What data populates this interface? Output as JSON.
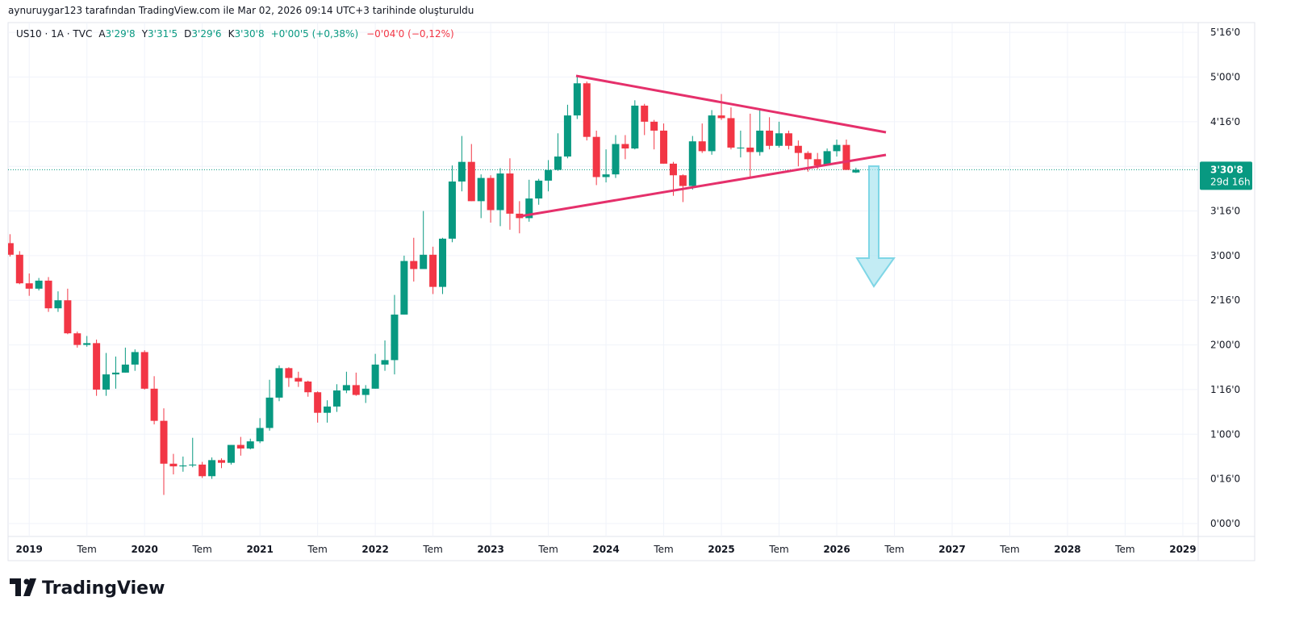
{
  "page": {
    "credit": "aynuruygar123 tarafından TradingView.com ile Mar 02, 2026 09:14 UTC+3 tarihinde oluşturuldu",
    "brand": "TradingView"
  },
  "chart_data": {
    "type": "candlestick",
    "header": {
      "symbol": "US10 · 1A · TVC",
      "fields": [
        {
          "label": "A",
          "value": "3'29'8"
        },
        {
          "label": "Y",
          "value": "3'31'5"
        },
        {
          "label": "D",
          "value": "3'29'6"
        },
        {
          "label": "K",
          "value": "3'30'8"
        }
      ],
      "change": "+0'00'5 (+0,38%)",
      "change2": "−0'04'0 (−0,12%)"
    },
    "open": [
      3.14,
      3.01,
      2.69,
      2.63,
      2.72,
      2.41,
      2.5,
      2.13,
      2.0,
      2.02,
      1.5,
      1.67,
      1.69,
      1.78,
      1.92,
      1.51,
      1.15,
      0.67,
      0.64,
      0.65,
      0.66,
      0.53,
      0.71,
      0.68,
      0.88,
      0.84,
      0.92,
      1.07,
      1.41,
      1.74,
      1.63,
      1.59,
      1.47,
      1.24,
      1.31,
      1.49,
      1.55,
      1.44,
      1.51,
      1.78,
      1.83,
      2.34,
      2.94,
      2.85,
      3.01,
      2.65,
      3.19,
      3.83,
      4.05,
      3.61,
      3.87,
      3.51,
      3.92,
      3.47,
      3.42,
      3.64,
      3.84,
      3.96,
      4.11,
      4.57,
      4.93,
      4.33,
      3.88,
      3.91,
      4.25,
      4.2,
      4.68,
      4.5,
      4.4,
      4.03,
      3.9,
      3.78,
      4.28,
      4.17,
      4.57,
      4.54,
      4.21,
      4.21,
      4.16,
      4.4,
      4.23,
      4.37,
      4.23,
      4.15,
      4.08,
      4.01,
      4.17,
      4.24,
      3.93125
    ],
    "high": [
      3.24,
      3.05,
      2.8,
      2.75,
      2.76,
      2.6,
      2.63,
      2.15,
      2.1,
      2.06,
      1.91,
      1.87,
      1.97,
      1.95,
      1.94,
      1.65,
      1.29,
      0.78,
      0.75,
      0.96,
      0.69,
      0.74,
      0.73,
      0.88,
      0.97,
      0.95,
      1.18,
      1.61,
      1.77,
      1.75,
      1.7,
      1.6,
      1.48,
      1.38,
      1.56,
      1.7,
      1.69,
      1.55,
      1.9,
      2.05,
      2.56,
      3.0,
      3.2,
      3.5,
      3.1,
      3.2,
      4.01,
      4.34,
      4.25,
      3.91,
      3.9,
      3.98,
      4.09,
      3.61,
      3.85,
      3.86,
      4.07,
      4.37,
      4.69,
      5.02,
      4.95,
      4.4,
      4.19,
      4.35,
      4.35,
      4.74,
      4.7,
      4.52,
      4.48,
      4.05,
      3.91,
      4.34,
      4.48,
      4.63,
      4.81,
      4.66,
      4.4,
      4.59,
      4.63,
      4.55,
      4.5,
      4.4,
      4.29,
      4.17,
      4.15,
      4.2,
      4.3,
      4.3,
      3.984375
    ],
    "low": [
      2.99,
      2.68,
      2.55,
      2.61,
      2.37,
      2.37,
      2.12,
      1.97,
      1.98,
      1.43,
      1.43,
      1.51,
      1.69,
      1.71,
      1.5,
      1.11,
      0.32,
      0.55,
      0.58,
      0.63,
      0.51,
      0.5,
      0.62,
      0.66,
      0.76,
      0.83,
      0.9,
      1.04,
      1.37,
      1.53,
      1.53,
      1.42,
      1.13,
      1.13,
      1.25,
      1.46,
      1.43,
      1.35,
      1.51,
      1.71,
      1.67,
      2.34,
      2.71,
      2.85,
      2.57,
      2.57,
      3.15,
      3.72,
      3.61,
      3.42,
      3.37,
      3.33,
      3.29,
      3.25,
      3.38,
      3.57,
      3.72,
      3.95,
      4.09,
      4.53,
      4.29,
      3.79,
      3.82,
      3.87,
      4.08,
      4.19,
      4.35,
      4.19,
      4.03,
      3.67,
      3.6,
      3.74,
      4.15,
      4.13,
      4.52,
      4.19,
      4.1,
      3.87,
      4.12,
      4.19,
      4.21,
      4.19,
      4.0,
      3.94,
      3.97,
      4.01,
      4.11,
      3.96,
      3.925
    ],
    "close": [
      3.01,
      2.69,
      2.63,
      2.72,
      2.41,
      2.5,
      2.13,
      2.0,
      2.02,
      1.5,
      1.67,
      1.69,
      1.78,
      1.92,
      1.51,
      1.15,
      0.67,
      0.64,
      0.65,
      0.66,
      0.53,
      0.71,
      0.68,
      0.88,
      0.84,
      0.92,
      1.07,
      1.41,
      1.74,
      1.63,
      1.59,
      1.47,
      1.24,
      1.31,
      1.49,
      1.55,
      1.44,
      1.51,
      1.78,
      1.83,
      2.34,
      2.94,
      2.85,
      3.01,
      2.65,
      3.19,
      3.83,
      4.05,
      3.61,
      3.87,
      3.51,
      3.92,
      3.47,
      3.42,
      3.64,
      3.84,
      3.96,
      4.11,
      4.57,
      4.93,
      4.33,
      3.88,
      3.91,
      4.25,
      4.2,
      4.68,
      4.5,
      4.4,
      4.03,
      3.9,
      3.78,
      4.28,
      4.17,
      4.57,
      4.54,
      4.21,
      4.21,
      4.16,
      4.4,
      4.23,
      4.37,
      4.23,
      4.15,
      4.08,
      4.01,
      4.17,
      4.24,
      3.96,
      3.9625
    ],
    "up_color": "#089981",
    "down_color": "#f23645",
    "last_price": {
      "value": 3.9625,
      "label": "3'30'8"
    },
    "countdown": "29d 16h",
    "xlim": [
      -0.2,
      123.6
    ],
    "xticks": [
      {
        "value": 2,
        "label": "2019"
      },
      {
        "value": 8,
        "label": "Tem"
      },
      {
        "value": 14,
        "label": "2020"
      },
      {
        "value": 20,
        "label": "Tem"
      },
      {
        "value": 26,
        "label": "2021"
      },
      {
        "value": 32,
        "label": "Tem"
      },
      {
        "value": 38,
        "label": "2022"
      },
      {
        "value": 44,
        "label": "Tem"
      },
      {
        "value": 50,
        "label": "2023"
      },
      {
        "value": 56,
        "label": "Tem"
      },
      {
        "value": 62,
        "label": "2024"
      },
      {
        "value": 68,
        "label": "Tem"
      },
      {
        "value": 74,
        "label": "2025"
      },
      {
        "value": 80,
        "label": "Tem"
      },
      {
        "value": 86,
        "label": "2026"
      },
      {
        "value": 92,
        "label": "Tem"
      },
      {
        "value": 98,
        "label": "2027"
      },
      {
        "value": 104,
        "label": "Tem"
      },
      {
        "value": 110,
        "label": "2028"
      },
      {
        "value": 116,
        "label": "Tem"
      },
      {
        "value": 122,
        "label": "2029"
      }
    ],
    "ylim": [
      -0.145,
      5.61
    ],
    "yticks": [
      {
        "value": 0,
        "label": "0'00'0"
      },
      {
        "value": 0.5,
        "label": "0'16'0"
      },
      {
        "value": 1,
        "label": "1'00'0"
      },
      {
        "value": 1.5,
        "label": "1'16'0"
      },
      {
        "value": 2,
        "label": "2'00'0"
      },
      {
        "value": 2.5,
        "label": "2'16'0"
      },
      {
        "value": 3,
        "label": "3'00'0"
      },
      {
        "value": 3.5,
        "label": "3'16'0"
      },
      {
        "value": 4,
        "label": "4'00'0"
      },
      {
        "value": 4.5,
        "label": "4'16'0"
      },
      {
        "value": 5,
        "label": "5'00'0"
      },
      {
        "value": 5.5,
        "label": "5'16'0"
      }
    ],
    "grid": true
  }
}
